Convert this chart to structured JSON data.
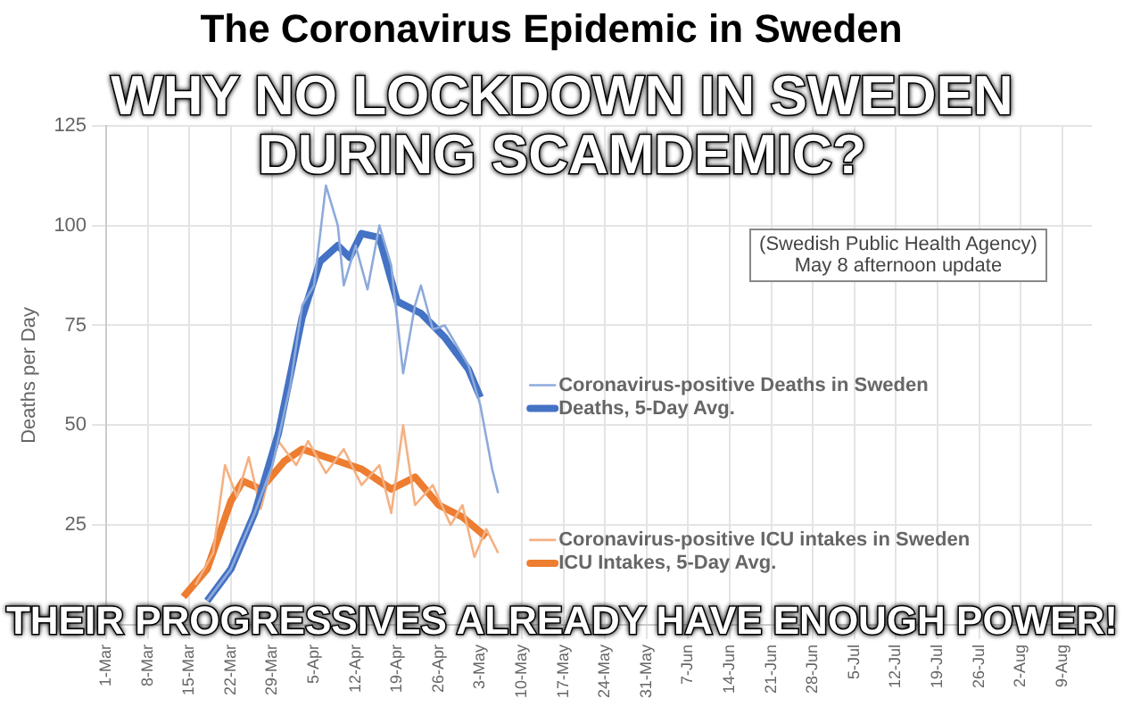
{
  "chart_data": {
    "type": "line",
    "title": "The Coronavirus Epidemic in Sweden",
    "ylabel": "Deaths per Day",
    "annotations": [
      "(Swedish Public Health Agency)",
      "May 8 afternoon update",
      "WHY NO LOCKDOWN IN SWEDEN DURING SCAMDEMIC?",
      "THEIR PROGRESSIVES ALREADY HAVE ENOUGH POWER!"
    ],
    "xlim": [
      "--03-01",
      "--08-14"
    ],
    "xticks": [
      {
        "value": "--03-01",
        "label": "1-Mar"
      },
      {
        "value": "--03-08",
        "label": "8-Mar"
      },
      {
        "value": "--03-15",
        "label": "15-Mar"
      },
      {
        "value": "--03-22",
        "label": "22-Mar"
      },
      {
        "value": "--03-29",
        "label": "29-Mar"
      },
      {
        "value": "--04-05",
        "label": "5-Apr"
      },
      {
        "value": "--04-12",
        "label": "12-Apr"
      },
      {
        "value": "--04-19",
        "label": "19-Apr"
      },
      {
        "value": "--04-26",
        "label": "26-Apr"
      },
      {
        "value": "--05-03",
        "label": "3-May"
      },
      {
        "value": "--05-10",
        "label": "10-May"
      },
      {
        "value": "--05-17",
        "label": "17-May"
      },
      {
        "value": "--05-24",
        "label": "24-May"
      },
      {
        "value": "--05-31",
        "label": "31-May"
      },
      {
        "value": "--06-07",
        "label": "7-Jun"
      },
      {
        "value": "--06-14",
        "label": "14-Jun"
      },
      {
        "value": "--06-21",
        "label": "21-Jun"
      },
      {
        "value": "--06-28",
        "label": "28-Jun"
      },
      {
        "value": "--07-05",
        "label": "5-Jul"
      },
      {
        "value": "--07-12",
        "label": "12-Jul"
      },
      {
        "value": "--07-19",
        "label": "19-Jul"
      },
      {
        "value": "--07-26",
        "label": "26-Jul"
      },
      {
        "value": "--08-02",
        "label": "2-Aug"
      },
      {
        "value": "--08-09",
        "label": "9-Aug"
      }
    ],
    "ylim": [
      0,
      125
    ],
    "yticks": [
      25,
      50,
      75,
      100,
      125
    ],
    "grid": true,
    "legend": "right",
    "marker": "none",
    "series": [
      {
        "name": "Coronavirus-positive Deaths in Sweden",
        "color": "#8eaadb",
        "x": [
          "--03-18",
          "--03-22",
          "--03-26",
          "--03-29",
          "--04-01",
          "--04-03",
          "--04-05",
          "--04-07",
          "--04-09",
          "--04-10",
          "--04-12",
          "--04-14",
          "--04-16",
          "--04-18",
          "--04-20",
          "--04-22",
          "--04-23",
          "--04-25",
          "--04-27",
          "--04-29",
          "--05-01",
          "--05-03",
          "--05-05",
          "--05-06"
        ],
        "values": [
          6,
          14,
          28,
          40,
          60,
          80,
          85,
          110,
          100,
          85,
          95,
          84,
          100,
          90,
          63,
          80,
          85,
          74,
          75,
          70,
          65,
          55,
          39,
          33
        ]
      },
      {
        "name": "Deaths, 5-Day Avg.",
        "color": "#4472c4",
        "x": [
          "--03-18",
          "--03-22",
          "--03-26",
          "--03-30",
          "--04-03",
          "--04-06",
          "--04-09",
          "--04-11",
          "--04-13",
          "--04-16",
          "--04-19",
          "--04-23",
          "--04-27",
          "--05-01",
          "--05-03"
        ],
        "values": [
          6,
          14,
          28,
          48,
          77,
          91,
          95,
          92,
          98,
          97,
          81,
          78,
          72,
          64,
          57
        ]
      },
      {
        "name": "Coronavirus-positive ICU intakes in Sweden",
        "color": "#f4b183",
        "x": [
          "--03-16",
          "--03-19",
          "--03-21",
          "--03-23",
          "--03-25",
          "--03-27",
          "--03-30",
          "--04-02",
          "--04-04",
          "--04-07",
          "--04-10",
          "--04-13",
          "--04-16",
          "--04-18",
          "--04-20",
          "--04-22",
          "--04-25",
          "--04-28",
          "--04-30",
          "--05-02",
          "--05-04",
          "--05-06"
        ],
        "values": [
          10,
          18,
          40,
          32,
          42,
          29,
          46,
          40,
          46,
          38,
          44,
          35,
          40,
          28,
          50,
          30,
          35,
          25,
          30,
          17,
          24,
          18
        ]
      },
      {
        "name": "ICU Intakes, 5-Day Avg.",
        "color": "#ed7d31",
        "x": [
          "--03-14",
          "--03-18",
          "--03-22",
          "--03-24",
          "--03-27",
          "--03-31",
          "--04-03",
          "--04-09",
          "--04-13",
          "--04-18",
          "--04-22",
          "--04-26",
          "--04-30",
          "--05-04"
        ],
        "values": [
          7,
          14,
          31,
          36,
          34,
          41,
          44,
          41,
          39,
          34,
          37,
          30,
          27,
          22
        ]
      }
    ]
  }
}
